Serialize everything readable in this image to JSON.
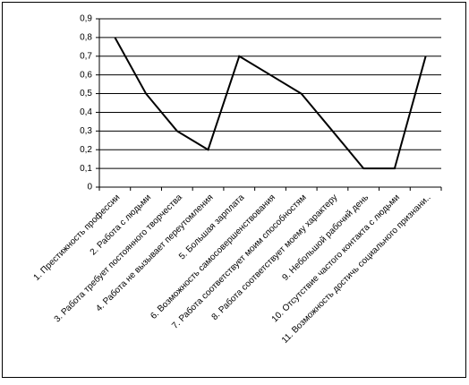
{
  "chart_data": {
    "type": "line",
    "categories": [
      "1. Престижность профессии",
      "2. Работа с людьми",
      "3. Работа требует постоянного творчества",
      "4. Работа не вызывает переутомления",
      "5. Большая зарплата",
      "6. Возможность самосовершенствования",
      "7. Работа соответствует моим способностям",
      "8. Работа соответствует моему характеру",
      "9. Небольшой рабочий день",
      "10. Отсутствие частого контакта с людьми",
      "11. Возможность достичь социального признани.."
    ],
    "values": [
      0.8,
      0.5,
      0.3,
      0.2,
      0.7,
      0.6,
      0.5,
      0.3,
      0.1,
      0.1,
      0.7
    ],
    "color": "#000000",
    "ylim": [
      0,
      0.9
    ],
    "yticks": [
      {
        "value": 0,
        "label": "0"
      },
      {
        "value": 0.1,
        "label": "0,1"
      },
      {
        "value": 0.2,
        "label": "0,2"
      },
      {
        "value": 0.3,
        "label": "0,3"
      },
      {
        "value": 0.4,
        "label": "0,4"
      },
      {
        "value": 0.5,
        "label": "0,5"
      },
      {
        "value": 0.6,
        "label": "0,6"
      },
      {
        "value": 0.7,
        "label": "0,7"
      },
      {
        "value": 0.8,
        "label": "0,8"
      },
      {
        "value": 0.9,
        "label": "0,9"
      }
    ],
    "grid": true
  }
}
